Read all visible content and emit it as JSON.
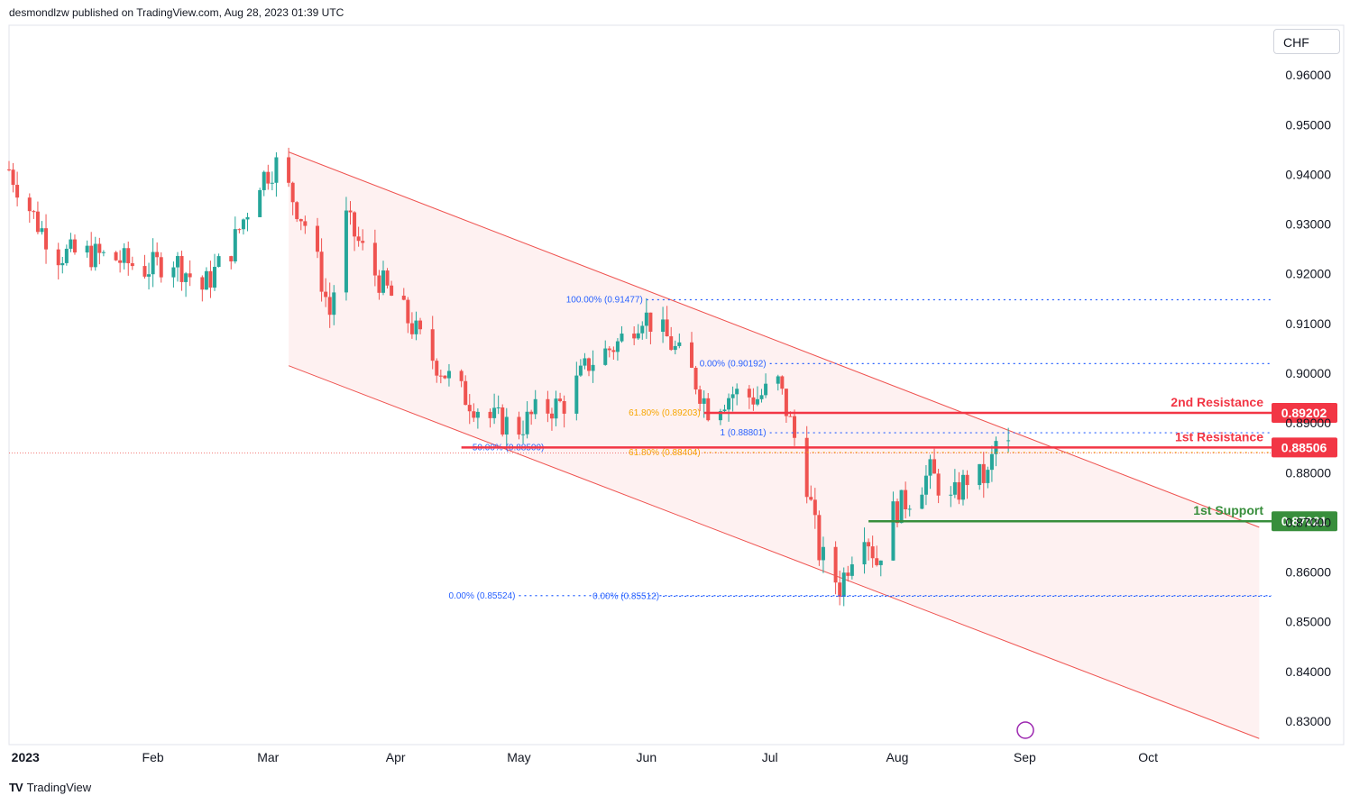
{
  "header": {
    "publisher_text": "desmondlzw published on TradingView.com, Aug 28, 2023 01:39 UTC"
  },
  "currency": "CHF",
  "footer": {
    "brand": "TradingView",
    "logo_icon": "tradingview-logo-icon"
  },
  "colors": {
    "up": "#26a69a",
    "down": "#ef5350",
    "resistance": "#f23645",
    "support": "#388e3c",
    "fib_blue": "#2962ff",
    "fib_orange": "#f7a600",
    "channel_fill": "#fdecec"
  },
  "chart_data": {
    "type": "candlestick",
    "title": "",
    "ylim": [
      0.826,
      0.97
    ],
    "y_ticks": [
      0.96,
      0.95,
      0.94,
      0.93,
      0.92,
      0.91,
      0.9,
      0.89,
      0.88,
      0.87,
      0.86,
      0.85,
      0.84,
      0.83
    ],
    "y_tick_labels": [
      "0.96000",
      "0.95000",
      "0.94000",
      "0.93000",
      "0.92000",
      "0.91000",
      "0.90000",
      "0.89000",
      "0.88000",
      "0.87000",
      "0.86000",
      "0.85000",
      "0.84000",
      "0.83000"
    ],
    "x_labels": [
      "2023",
      "Feb",
      "Mar",
      "Apr",
      "May",
      "Jun",
      "Jul",
      "Aug",
      "Sep",
      "Oct"
    ],
    "x_label_dates": [
      "2023-01-01",
      "2023-02-01",
      "2023-03-01",
      "2023-04-01",
      "2023-05-01",
      "2023-06-01",
      "2023-07-01",
      "2023-08-01",
      "2023-09-01",
      "2023-10-01"
    ],
    "date_range": [
      "2022-12-28",
      "2023-10-31"
    ],
    "closes": [
      {
        "date": "2022-12-28",
        "close": 0.941
      },
      {
        "date": "2023-01-04",
        "close": 0.93
      },
      {
        "date": "2023-01-09",
        "close": 0.924
      },
      {
        "date": "2023-01-16",
        "close": 0.924
      },
      {
        "date": "2023-01-23",
        "close": 0.923
      },
      {
        "date": "2023-01-30",
        "close": 0.921
      },
      {
        "date": "2023-02-06",
        "close": 0.923
      },
      {
        "date": "2023-02-13",
        "close": 0.917
      },
      {
        "date": "2023-02-20",
        "close": 0.925
      },
      {
        "date": "2023-02-27",
        "close": 0.939
      },
      {
        "date": "2023-03-03",
        "close": 0.942
      },
      {
        "date": "2023-03-06",
        "close": 0.937
      },
      {
        "date": "2023-03-10",
        "close": 0.93
      },
      {
        "date": "2023-03-13",
        "close": 0.922
      },
      {
        "date": "2023-03-16",
        "close": 0.912
      },
      {
        "date": "2023-03-20",
        "close": 0.931
      },
      {
        "date": "2023-03-27",
        "close": 0.92
      },
      {
        "date": "2023-04-03",
        "close": 0.912
      },
      {
        "date": "2023-04-10",
        "close": 0.903
      },
      {
        "date": "2023-04-17",
        "close": 0.896
      },
      {
        "date": "2023-04-24",
        "close": 0.891
      },
      {
        "date": "2023-05-01",
        "close": 0.889
      },
      {
        "date": "2023-05-05",
        "close": 0.892
      },
      {
        "date": "2023-05-12",
        "close": 0.894
      },
      {
        "date": "2023-05-18",
        "close": 0.902
      },
      {
        "date": "2023-05-25",
        "close": 0.906
      },
      {
        "date": "2023-05-31",
        "close": 0.912
      },
      {
        "date": "2023-06-06",
        "close": 0.907
      },
      {
        "date": "2023-06-12",
        "close": 0.9
      },
      {
        "date": "2023-06-16",
        "close": 0.893
      },
      {
        "date": "2023-06-22",
        "close": 0.896
      },
      {
        "date": "2023-06-28",
        "close": 0.895
      },
      {
        "date": "2023-07-03",
        "close": 0.898
      },
      {
        "date": "2023-07-06",
        "close": 0.89
      },
      {
        "date": "2023-07-10",
        "close": 0.878
      },
      {
        "date": "2023-07-13",
        "close": 0.864
      },
      {
        "date": "2023-07-18",
        "close": 0.857
      },
      {
        "date": "2023-07-21",
        "close": 0.864
      },
      {
        "date": "2023-07-24",
        "close": 0.869
      },
      {
        "date": "2023-07-27",
        "close": 0.862
      },
      {
        "date": "2023-07-31",
        "close": 0.872
      },
      {
        "date": "2023-08-04",
        "close": 0.875
      },
      {
        "date": "2023-08-09",
        "close": 0.88
      },
      {
        "date": "2023-08-14",
        "close": 0.874
      },
      {
        "date": "2023-08-18",
        "close": 0.879
      },
      {
        "date": "2023-08-23",
        "close": 0.879
      },
      {
        "date": "2023-08-25",
        "close": 0.886
      },
      {
        "date": "2023-08-28",
        "close": 0.885
      }
    ],
    "levels": [
      {
        "label": "2nd Resistance",
        "price_label": "0.89202",
        "value": 0.89202,
        "color": "#f23645",
        "start": "2023-06-15"
      },
      {
        "label": "1st Resistance",
        "price_label": "0.88506",
        "value": 0.88506,
        "color": "#f23645",
        "start": "2023-04-17"
      },
      {
        "label": "1st Support",
        "price_label": "0.87021",
        "value": 0.87021,
        "color": "#388e3c",
        "start": "2023-07-25"
      }
    ],
    "fib_lines": [
      {
        "label": "100.00% (0.91477)",
        "value": 0.91477,
        "start": "2023-06-01",
        "color": "#2962ff"
      },
      {
        "label": "0.00% (0.90192)",
        "value": 0.90192,
        "start": "2023-07-01",
        "color": "#2962ff"
      },
      {
        "label": "61.80% (0.89203)",
        "value": 0.89203,
        "start": "2023-06-15",
        "color": "#f7a600"
      },
      {
        "label": "1 (0.88801)",
        "value": 0.88801,
        "start": "2023-07-01",
        "color": "#2962ff"
      },
      {
        "label": "50.00% (0.88500)",
        "value": 0.885,
        "start": "2023-05-08",
        "color": "#2962ff"
      },
      {
        "label": "61.80% (0.88404)",
        "value": 0.88404,
        "start": "2023-06-15",
        "color": "#f7a600"
      },
      {
        "label": "0.00% (0.85524)",
        "value": 0.85524,
        "start": "2023-05-01",
        "color": "#2962ff"
      },
      {
        "label": "0.00% (0.85512)",
        "value": 0.85512,
        "start": "2023-06-05",
        "color": "#2962ff"
      }
    ],
    "current_price": 0.88506,
    "channel": {
      "upper_start": {
        "date": "2023-03-06",
        "value": 0.9445
      },
      "upper_end": {
        "date": "2023-10-28",
        "value": 0.869
      },
      "lower_start": {
        "date": "2023-03-06",
        "value": 0.9015
      },
      "lower_end": {
        "date": "2023-10-28",
        "value": 0.8265
      }
    }
  }
}
